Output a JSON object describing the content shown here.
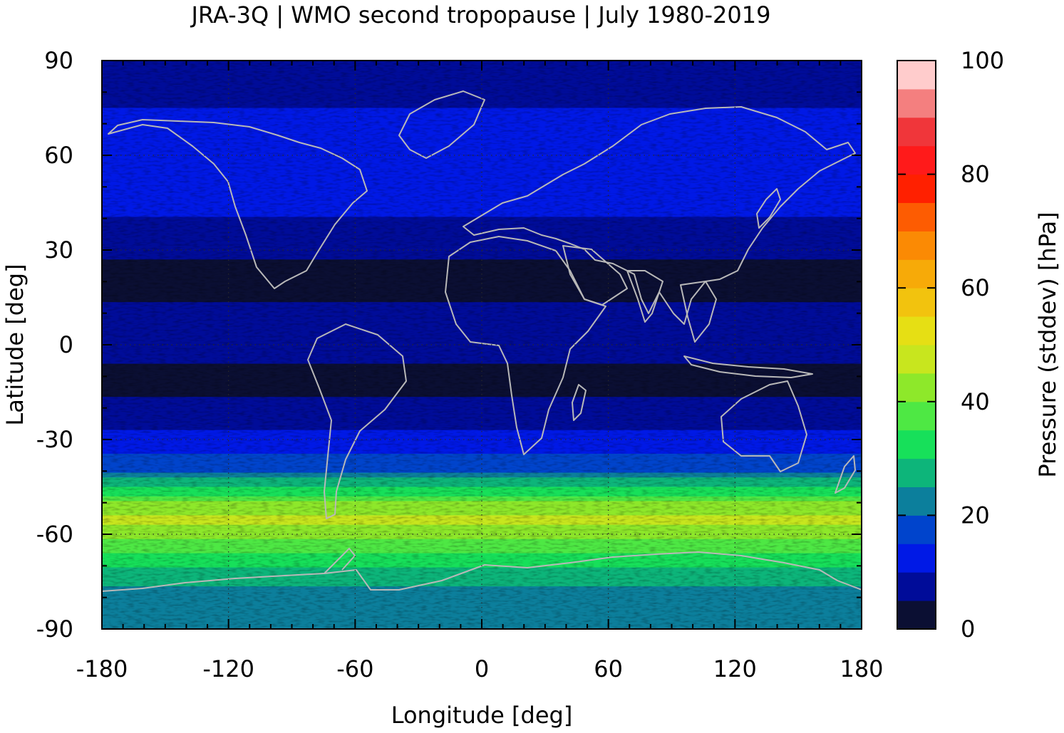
{
  "chart_data": {
    "type": "heatmap",
    "title": "JRA-3Q | WMO second tropopause | July 1980-2019",
    "xlabel": "Longitude [deg]",
    "ylabel": "Latitude [deg]",
    "colorbar_label": "Pressure (stddev) [hPa]",
    "xlim": [
      -180,
      180
    ],
    "ylim": [
      -90,
      90
    ],
    "xticks": [
      -180,
      -120,
      -60,
      0,
      60,
      120,
      180
    ],
    "xtick_labels": [
      "-180",
      "-120",
      "-60",
      "0",
      "60",
      "120",
      "180"
    ],
    "yticks": [
      90,
      60,
      30,
      0,
      -30,
      -60,
      -90
    ],
    "ytick_labels": [
      "90",
      "60",
      "30",
      "0",
      "-30",
      "-60",
      "-90"
    ],
    "grid": "dotted at 60° longitude / 30° latitude",
    "colorbar": {
      "range": [
        0,
        100
      ],
      "step": 5,
      "ticks": [
        0,
        20,
        40,
        60,
        80,
        100
      ],
      "tick_labels": [
        "0",
        "20",
        "40",
        "60",
        "80",
        "100"
      ],
      "colors": [
        "#0b0f33",
        "#000c99",
        "#0019e6",
        "#0044cc",
        "#0c7f9c",
        "#0db57a",
        "#17e05a",
        "#4ee844",
        "#8ee82a",
        "#c8e61e",
        "#e6df14",
        "#f2c30e",
        "#f7aa08",
        "#fb8a04",
        "#fd5c02",
        "#ff2000",
        "#ff1a1a",
        "#f0363a",
        "#f47f7f",
        "#ffcccc"
      ]
    },
    "zonal_mean_profile": {
      "lat": [
        90,
        80,
        70,
        60,
        50,
        40,
        30,
        20,
        10,
        0,
        -10,
        -20,
        -30,
        -40,
        -45,
        -50,
        -55,
        -60,
        -65,
        -70,
        -75,
        -80,
        -90
      ],
      "value": [
        8,
        9,
        11,
        12,
        11,
        10,
        6,
        3,
        6,
        9,
        3,
        6,
        12,
        19,
        30,
        40,
        46,
        42,
        36,
        30,
        26,
        23,
        21
      ]
    },
    "notes": "Gridded field of second-tropopause pressure standard deviation with coastline overlay"
  }
}
